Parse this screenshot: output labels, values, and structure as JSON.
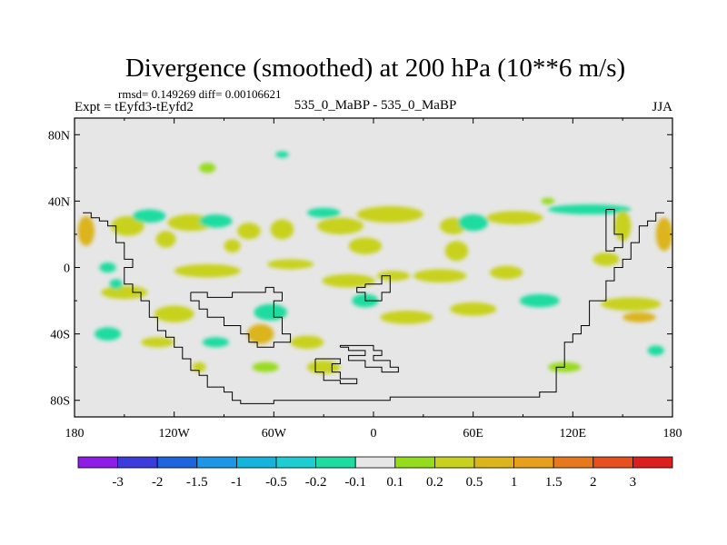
{
  "chart_data": {
    "type": "heatmap",
    "title": "Divergence (smoothed) at 200 hPa (10**6 m/s)",
    "subtitle_stats": "rmsd= 0.149269 diff= 0.00106621",
    "left_label": "Expt = tEyfd3-tEyfd2",
    "center_label": "535_0_MaBP - 535_0_MaBP",
    "right_label": "JJA",
    "x_ticks": [
      {
        "lon": -180,
        "label": "180"
      },
      {
        "lon": -120,
        "label": "120W"
      },
      {
        "lon": -60,
        "label": "60W"
      },
      {
        "lon": 0,
        "label": "0"
      },
      {
        "lon": 60,
        "label": "60E"
      },
      {
        "lon": 120,
        "label": "120E"
      },
      {
        "lon": 180,
        "label": "180"
      }
    ],
    "y_ticks": [
      {
        "lat": 80,
        "label": "80N"
      },
      {
        "lat": 40,
        "label": "40N"
      },
      {
        "lat": 0,
        "label": "0"
      },
      {
        "lat": -40,
        "label": "40S"
      },
      {
        "lat": -80,
        "label": "80S"
      }
    ],
    "xlim": [
      -180,
      180
    ],
    "ylim": [
      -90,
      90
    ],
    "colorbar": {
      "colors": [
        "#8c1ee6",
        "#3c3cdc",
        "#1e64dc",
        "#1e96e6",
        "#14b4dc",
        "#1ecdd2",
        "#1edca0",
        "#e6e6e6",
        "#96dc1e",
        "#c8d21e",
        "#dcb41e",
        "#e6a01e",
        "#e6781e",
        "#e6501e",
        "#dc1e1e"
      ],
      "labels": [
        "-3",
        "-2",
        "-1.5",
        "-1",
        "-0.5",
        "-0.2",
        "-0.1",
        "0.1",
        "0.2",
        "0.5",
        "1",
        "1.5",
        "2",
        "3"
      ]
    },
    "blobs": [
      {
        "lon": -173,
        "lat": 22,
        "rx": 5,
        "ry": 9,
        "level": 10
      },
      {
        "lon": -148,
        "lat": 25,
        "rx": 10,
        "ry": 6,
        "level": 9
      },
      {
        "lon": -110,
        "lat": 27,
        "rx": 14,
        "ry": 5,
        "level": 9
      },
      {
        "lon": -75,
        "lat": 22,
        "rx": 7,
        "ry": 5,
        "level": 9
      },
      {
        "lon": -55,
        "lat": 23,
        "rx": 7,
        "ry": 6,
        "level": 9
      },
      {
        "lon": -20,
        "lat": 25,
        "rx": 14,
        "ry": 5,
        "level": 9
      },
      {
        "lon": 10,
        "lat": 32,
        "rx": 20,
        "ry": 5,
        "level": 9
      },
      {
        "lon": 48,
        "lat": 25,
        "rx": 8,
        "ry": 5,
        "level": 9
      },
      {
        "lon": 85,
        "lat": 30,
        "rx": 17,
        "ry": 4,
        "level": 9
      },
      {
        "lon": -135,
        "lat": 31,
        "rx": 10,
        "ry": 4,
        "level": 6
      },
      {
        "lon": -95,
        "lat": 28,
        "rx": 10,
        "ry": 4,
        "level": 6
      },
      {
        "lon": -30,
        "lat": 33,
        "rx": 10,
        "ry": 3,
        "level": 6
      },
      {
        "lon": 60,
        "lat": 27,
        "rx": 9,
        "ry": 5,
        "level": 6
      },
      {
        "lon": 130,
        "lat": 35,
        "rx": 25,
        "ry": 3,
        "level": 6
      },
      {
        "lon": -125,
        "lat": 17,
        "rx": 6,
        "ry": 5,
        "level": 9
      },
      {
        "lon": -85,
        "lat": 13,
        "rx": 5,
        "ry": 4,
        "level": 9
      },
      {
        "lon": -5,
        "lat": 13,
        "rx": 10,
        "ry": 5,
        "level": 9
      },
      {
        "lon": 50,
        "lat": 10,
        "rx": 7,
        "ry": 6,
        "level": 9
      },
      {
        "lon": 175,
        "lat": 20,
        "rx": 5,
        "ry": 10,
        "level": 10
      },
      {
        "lon": 150,
        "lat": 25,
        "rx": 5,
        "ry": 9,
        "level": 9
      },
      {
        "lon": 140,
        "lat": 5,
        "rx": 8,
        "ry": 4,
        "level": 9
      },
      {
        "lon": -160,
        "lat": 0,
        "rx": 5,
        "ry": 3,
        "level": 6
      },
      {
        "lon": -100,
        "lat": -2,
        "rx": 20,
        "ry": 4,
        "level": 9
      },
      {
        "lon": -50,
        "lat": 2,
        "rx": 14,
        "ry": 3,
        "level": 9
      },
      {
        "lon": -15,
        "lat": -8,
        "rx": 16,
        "ry": 4,
        "level": 9
      },
      {
        "lon": 12,
        "lat": -5,
        "rx": 10,
        "ry": 3,
        "level": 9
      },
      {
        "lon": 40,
        "lat": -5,
        "rx": 16,
        "ry": 4,
        "level": 9
      },
      {
        "lon": 80,
        "lat": -3,
        "rx": 10,
        "ry": 4,
        "level": 9
      },
      {
        "lon": -150,
        "lat": -15,
        "rx": 14,
        "ry": 4,
        "level": 9
      },
      {
        "lon": -155,
        "lat": -10,
        "rx": 4,
        "ry": 3,
        "level": 6
      },
      {
        "lon": -62,
        "lat": -27,
        "rx": 10,
        "ry": 5,
        "level": 6
      },
      {
        "lon": -5,
        "lat": -20,
        "rx": 8,
        "ry": 4,
        "level": 6
      },
      {
        "lon": 20,
        "lat": -30,
        "rx": 16,
        "ry": 4,
        "level": 9
      },
      {
        "lon": 60,
        "lat": -25,
        "rx": 14,
        "ry": 4,
        "level": 9
      },
      {
        "lon": -120,
        "lat": -28,
        "rx": 12,
        "ry": 5,
        "level": 9
      },
      {
        "lon": -68,
        "lat": -40,
        "rx": 8,
        "ry": 6,
        "level": 10
      },
      {
        "lon": -40,
        "lat": -45,
        "rx": 10,
        "ry": 4,
        "level": 9
      },
      {
        "lon": 100,
        "lat": -20,
        "rx": 12,
        "ry": 4,
        "level": 6
      },
      {
        "lon": 155,
        "lat": -22,
        "rx": 18,
        "ry": 4,
        "level": 9
      },
      {
        "lon": 160,
        "lat": -30,
        "rx": 10,
        "ry": 3,
        "level": 10
      },
      {
        "lon": -160,
        "lat": -40,
        "rx": 8,
        "ry": 4,
        "level": 6
      },
      {
        "lon": -130,
        "lat": -45,
        "rx": 10,
        "ry": 3,
        "level": 9
      },
      {
        "lon": -95,
        "lat": -45,
        "rx": 8,
        "ry": 3,
        "level": 6
      },
      {
        "lon": -30,
        "lat": -60,
        "rx": 10,
        "ry": 4,
        "level": 9
      },
      {
        "lon": -65,
        "lat": -60,
        "rx": 8,
        "ry": 3,
        "level": 8
      },
      {
        "lon": 115,
        "lat": -60,
        "rx": 10,
        "ry": 3,
        "level": 8
      },
      {
        "lon": 170,
        "lat": -50,
        "rx": 5,
        "ry": 3,
        "level": 6
      },
      {
        "lon": -100,
        "lat": 60,
        "rx": 5,
        "ry": 3,
        "level": 8
      },
      {
        "lon": -55,
        "lat": 68,
        "rx": 4,
        "ry": 2,
        "level": 6
      },
      {
        "lon": -105,
        "lat": -60,
        "rx": 4,
        "ry": 3,
        "level": 9
      },
      {
        "lon": 105,
        "lat": 40,
        "rx": 4,
        "ry": 2,
        "level": 8
      }
    ],
    "land_outline": [
      [
        [
          -175,
          33
        ],
        [
          -170,
          33
        ],
        [
          -170,
          30
        ],
        [
          -165,
          30
        ],
        [
          -165,
          28
        ],
        [
          -160,
          28
        ],
        [
          -160,
          25
        ],
        [
          -155,
          25
        ],
        [
          -155,
          15
        ],
        [
          -150,
          15
        ],
        [
          -150,
          5
        ],
        [
          -145,
          5
        ],
        [
          -145,
          0
        ],
        [
          -150,
          0
        ],
        [
          -150,
          -10
        ],
        [
          -145,
          -10
        ],
        [
          -145,
          -15
        ],
        [
          -140,
          -15
        ],
        [
          -140,
          -20
        ],
        [
          -135,
          -20
        ],
        [
          -135,
          -30
        ],
        [
          -130,
          -30
        ],
        [
          -130,
          -38
        ],
        [
          -125,
          -38
        ],
        [
          -125,
          -42
        ],
        [
          -120,
          -42
        ],
        [
          -120,
          -48
        ],
        [
          -115,
          -48
        ],
        [
          -115,
          -55
        ],
        [
          -110,
          -55
        ],
        [
          -110,
          -62
        ],
        [
          -105,
          -62
        ],
        [
          -105,
          -65
        ],
        [
          -100,
          -65
        ],
        [
          -100,
          -72
        ],
        [
          -90,
          -72
        ],
        [
          -90,
          -75
        ],
        [
          -85,
          -75
        ],
        [
          -85,
          -80
        ],
        [
          -80,
          -80
        ],
        [
          -80,
          -82
        ],
        [
          -60,
          -82
        ],
        [
          -60,
          -80
        ],
        [
          10,
          -80
        ],
        [
          10,
          -78
        ],
        [
          100,
          -78
        ],
        [
          100,
          -75
        ],
        [
          110,
          -75
        ],
        [
          110,
          -60
        ],
        [
          115,
          -60
        ],
        [
          115,
          -45
        ],
        [
          120,
          -45
        ],
        [
          120,
          -40
        ],
        [
          125,
          -40
        ],
        [
          125,
          -35
        ],
        [
          130,
          -35
        ],
        [
          130,
          -20
        ],
        [
          140,
          -20
        ],
        [
          140,
          -8
        ],
        [
          145,
          -8
        ],
        [
          145,
          0
        ],
        [
          150,
          0
        ],
        [
          150,
          5
        ],
        [
          155,
          5
        ],
        [
          155,
          15
        ],
        [
          160,
          15
        ],
        [
          160,
          25
        ],
        [
          165,
          25
        ],
        [
          165,
          28
        ],
        [
          170,
          28
        ],
        [
          170,
          33
        ],
        [
          175,
          33
        ]
      ],
      [
        [
          -110,
          -15
        ],
        [
          -100,
          -15
        ],
        [
          -100,
          -18
        ],
        [
          -85,
          -18
        ],
        [
          -85,
          -15
        ],
        [
          -65,
          -15
        ],
        [
          -65,
          -12
        ],
        [
          -60,
          -12
        ],
        [
          -60,
          -15
        ],
        [
          -55,
          -15
        ],
        [
          -55,
          -20
        ],
        [
          -60,
          -20
        ],
        [
          -60,
          -30
        ],
        [
          -55,
          -30
        ],
        [
          -55,
          -40
        ],
        [
          -50,
          -40
        ],
        [
          -50,
          -45
        ],
        [
          -60,
          -45
        ],
        [
          -60,
          -48
        ],
        [
          -70,
          -48
        ],
        [
          -70,
          -45
        ],
        [
          -75,
          -45
        ],
        [
          -75,
          -40
        ],
        [
          -80,
          -40
        ],
        [
          -80,
          -35
        ],
        [
          -90,
          -35
        ],
        [
          -90,
          -30
        ],
        [
          -100,
          -30
        ],
        [
          -100,
          -25
        ],
        [
          -105,
          -25
        ],
        [
          -105,
          -20
        ],
        [
          -110,
          -20
        ],
        [
          -110,
          -15
        ]
      ],
      [
        [
          -5,
          -10
        ],
        [
          5,
          -10
        ],
        [
          5,
          -5
        ],
        [
          10,
          -5
        ],
        [
          10,
          -15
        ],
        [
          5,
          -15
        ],
        [
          5,
          -20
        ],
        [
          -5,
          -20
        ],
        [
          -5,
          -15
        ],
        [
          -10,
          -15
        ],
        [
          -10,
          -12
        ],
        [
          -5,
          -12
        ],
        [
          -5,
          -10
        ]
      ],
      [
        [
          -20,
          -48
        ],
        [
          -15,
          -48
        ],
        [
          -15,
          -50
        ],
        [
          -5,
          -50
        ],
        [
          -5,
          -53
        ],
        [
          -15,
          -53
        ],
        [
          -15,
          -56
        ],
        [
          -5,
          -56
        ],
        [
          -5,
          -60
        ],
        [
          5,
          -60
        ],
        [
          5,
          -63
        ],
        [
          15,
          -63
        ],
        [
          15,
          -60
        ],
        [
          10,
          -60
        ],
        [
          10,
          -56
        ],
        [
          0,
          -56
        ],
        [
          0,
          -53
        ],
        [
          5,
          -53
        ],
        [
          5,
          -50
        ],
        [
          0,
          -50
        ],
        [
          0,
          -47
        ],
        [
          -20,
          -47
        ],
        [
          -20,
          -48
        ]
      ],
      [
        [
          -35,
          -55
        ],
        [
          -35,
          -63
        ],
        [
          -30,
          -63
        ],
        [
          -30,
          -68
        ],
        [
          -20,
          -68
        ],
        [
          -20,
          -70
        ],
        [
          -10,
          -70
        ],
        [
          -10,
          -67
        ],
        [
          -20,
          -67
        ],
        [
          -20,
          -63
        ],
        [
          -25,
          -63
        ],
        [
          -25,
          -58
        ],
        [
          -20,
          -58
        ],
        [
          -20,
          -55
        ],
        [
          -35,
          -55
        ]
      ],
      [
        [
          140,
          35
        ],
        [
          145,
          35
        ],
        [
          145,
          20
        ],
        [
          150,
          20
        ],
        [
          150,
          12
        ],
        [
          145,
          12
        ],
        [
          145,
          10
        ],
        [
          140,
          10
        ],
        [
          140,
          35
        ]
      ]
    ]
  }
}
